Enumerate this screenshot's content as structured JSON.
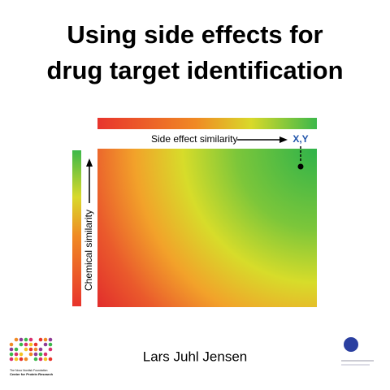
{
  "slide": {
    "title": [
      "Using side effects for",
      "drug target identification"
    ],
    "x_label": "Side effect similarity",
    "y_label": "Chemical similarity",
    "marker_label": "X,Y",
    "author": "Lars Juhl Jensen",
    "logo_text": [
      "The Novo Nordisk Foundation",
      "Center for Protein Research"
    ]
  }
}
